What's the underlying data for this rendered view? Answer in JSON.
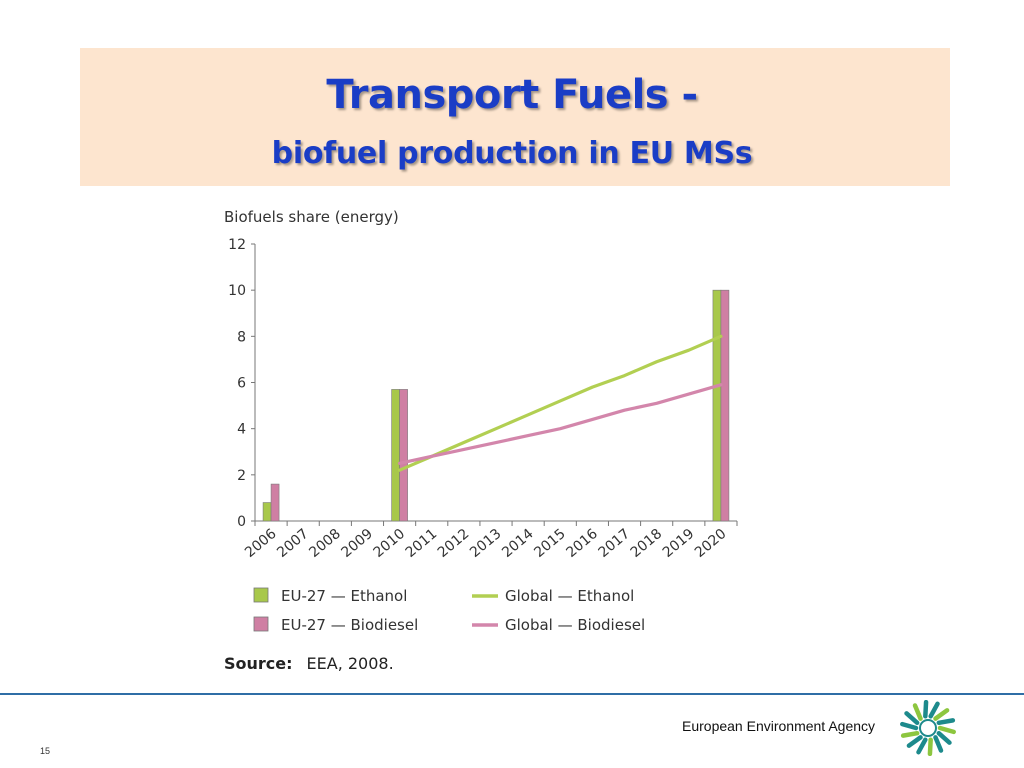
{
  "slide": {
    "title": "Transport Fuels -",
    "subtitle": "biofuel production in EU MSs",
    "source_label": "Source:",
    "source_text": "EEA, 2008.",
    "agency": "European Environment Agency",
    "page_number": "15"
  },
  "colors": {
    "title": "#1a3dc6",
    "band": "#fde5cf",
    "ethanol": "#a8c84b",
    "biodiesel": "#cf7fa3",
    "footer_line": "#2f6ea6",
    "logo_teal": "#1d8a8c"
  },
  "chart_data": {
    "type": "bar",
    "title": "Biofuels share (energy)",
    "categories": [
      "2006",
      "2007",
      "2008",
      "2009",
      "2010",
      "2011",
      "2012",
      "2013",
      "2014",
      "2015",
      "2016",
      "2017",
      "2018",
      "2019",
      "2020"
    ],
    "ylim": [
      0,
      12
    ],
    "yticks": [
      0,
      2,
      4,
      6,
      8,
      10,
      12
    ],
    "series": [
      {
        "name": "EU-27 — Ethanol",
        "kind": "bar",
        "color": "#a8c84b",
        "values": [
          0.8,
          null,
          null,
          null,
          5.7,
          null,
          null,
          null,
          null,
          null,
          null,
          null,
          null,
          null,
          10
        ]
      },
      {
        "name": "EU-27 — Biodiesel",
        "kind": "bar",
        "color": "#cf7fa3",
        "values": [
          1.6,
          null,
          null,
          null,
          5.7,
          null,
          null,
          null,
          null,
          null,
          null,
          null,
          null,
          null,
          10
        ]
      },
      {
        "name": "Global — Ethanol",
        "kind": "line",
        "color": "#b2cf52",
        "values": [
          null,
          null,
          null,
          null,
          2.2,
          2.8,
          3.4,
          4.0,
          4.6,
          5.2,
          5.8,
          6.3,
          6.9,
          7.4,
          8.0
        ]
      },
      {
        "name": "Global — Biodiesel",
        "kind": "line",
        "color": "#d386ab",
        "values": [
          null,
          null,
          null,
          null,
          2.5,
          2.8,
          3.1,
          3.4,
          3.7,
          4.0,
          4.4,
          4.8,
          5.1,
          5.5,
          5.9
        ]
      }
    ],
    "legend": "bottom"
  }
}
